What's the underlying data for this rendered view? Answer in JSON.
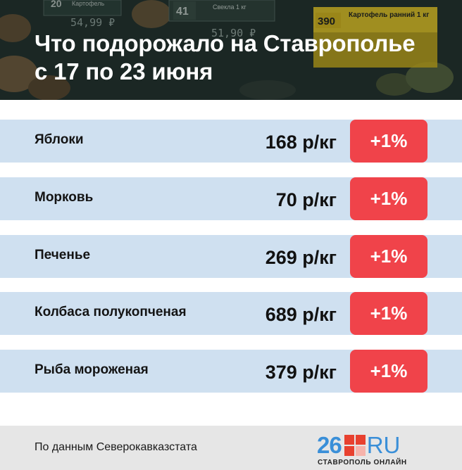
{
  "header": {
    "title_line1": "Что подорожало на Ставрополье",
    "title_line2": "с 17 по 23 июня",
    "photo_tags": [
      {
        "number": "20",
        "label": "Картофель"
      },
      {
        "number": "41",
        "label": "Свекла 1 кг"
      },
      {
        "number": "390",
        "label": "Картофель ранний 1 кг"
      }
    ],
    "photo_prices": [
      "54,99 ₽",
      "51,90 ₽"
    ]
  },
  "rows": [
    {
      "name": "Яблоки",
      "price": "168 р/кг",
      "change": "+1%"
    },
    {
      "name": "Морковь",
      "price": "70 р/кг",
      "change": "+1%"
    },
    {
      "name": "Печенье",
      "price": "269 р/кг",
      "change": "+1%"
    },
    {
      "name": "Колбаса полукопченая",
      "price": "689 р/кг",
      "change": "+1%"
    },
    {
      "name": "Рыба мороженая",
      "price": "379 р/кг",
      "change": "+1%"
    }
  ],
  "footer": {
    "source": "По данным Северокавказстата",
    "logo_number": "26",
    "logo_domain": "RU",
    "logo_sub": "СТАВРОПОЛЬ ОНЛАЙН"
  },
  "colors": {
    "row_bg": "#cfe0f0",
    "badge": "#f0434a",
    "logo_blue": "#3a8fd8",
    "logo_red": "#e8412f"
  }
}
